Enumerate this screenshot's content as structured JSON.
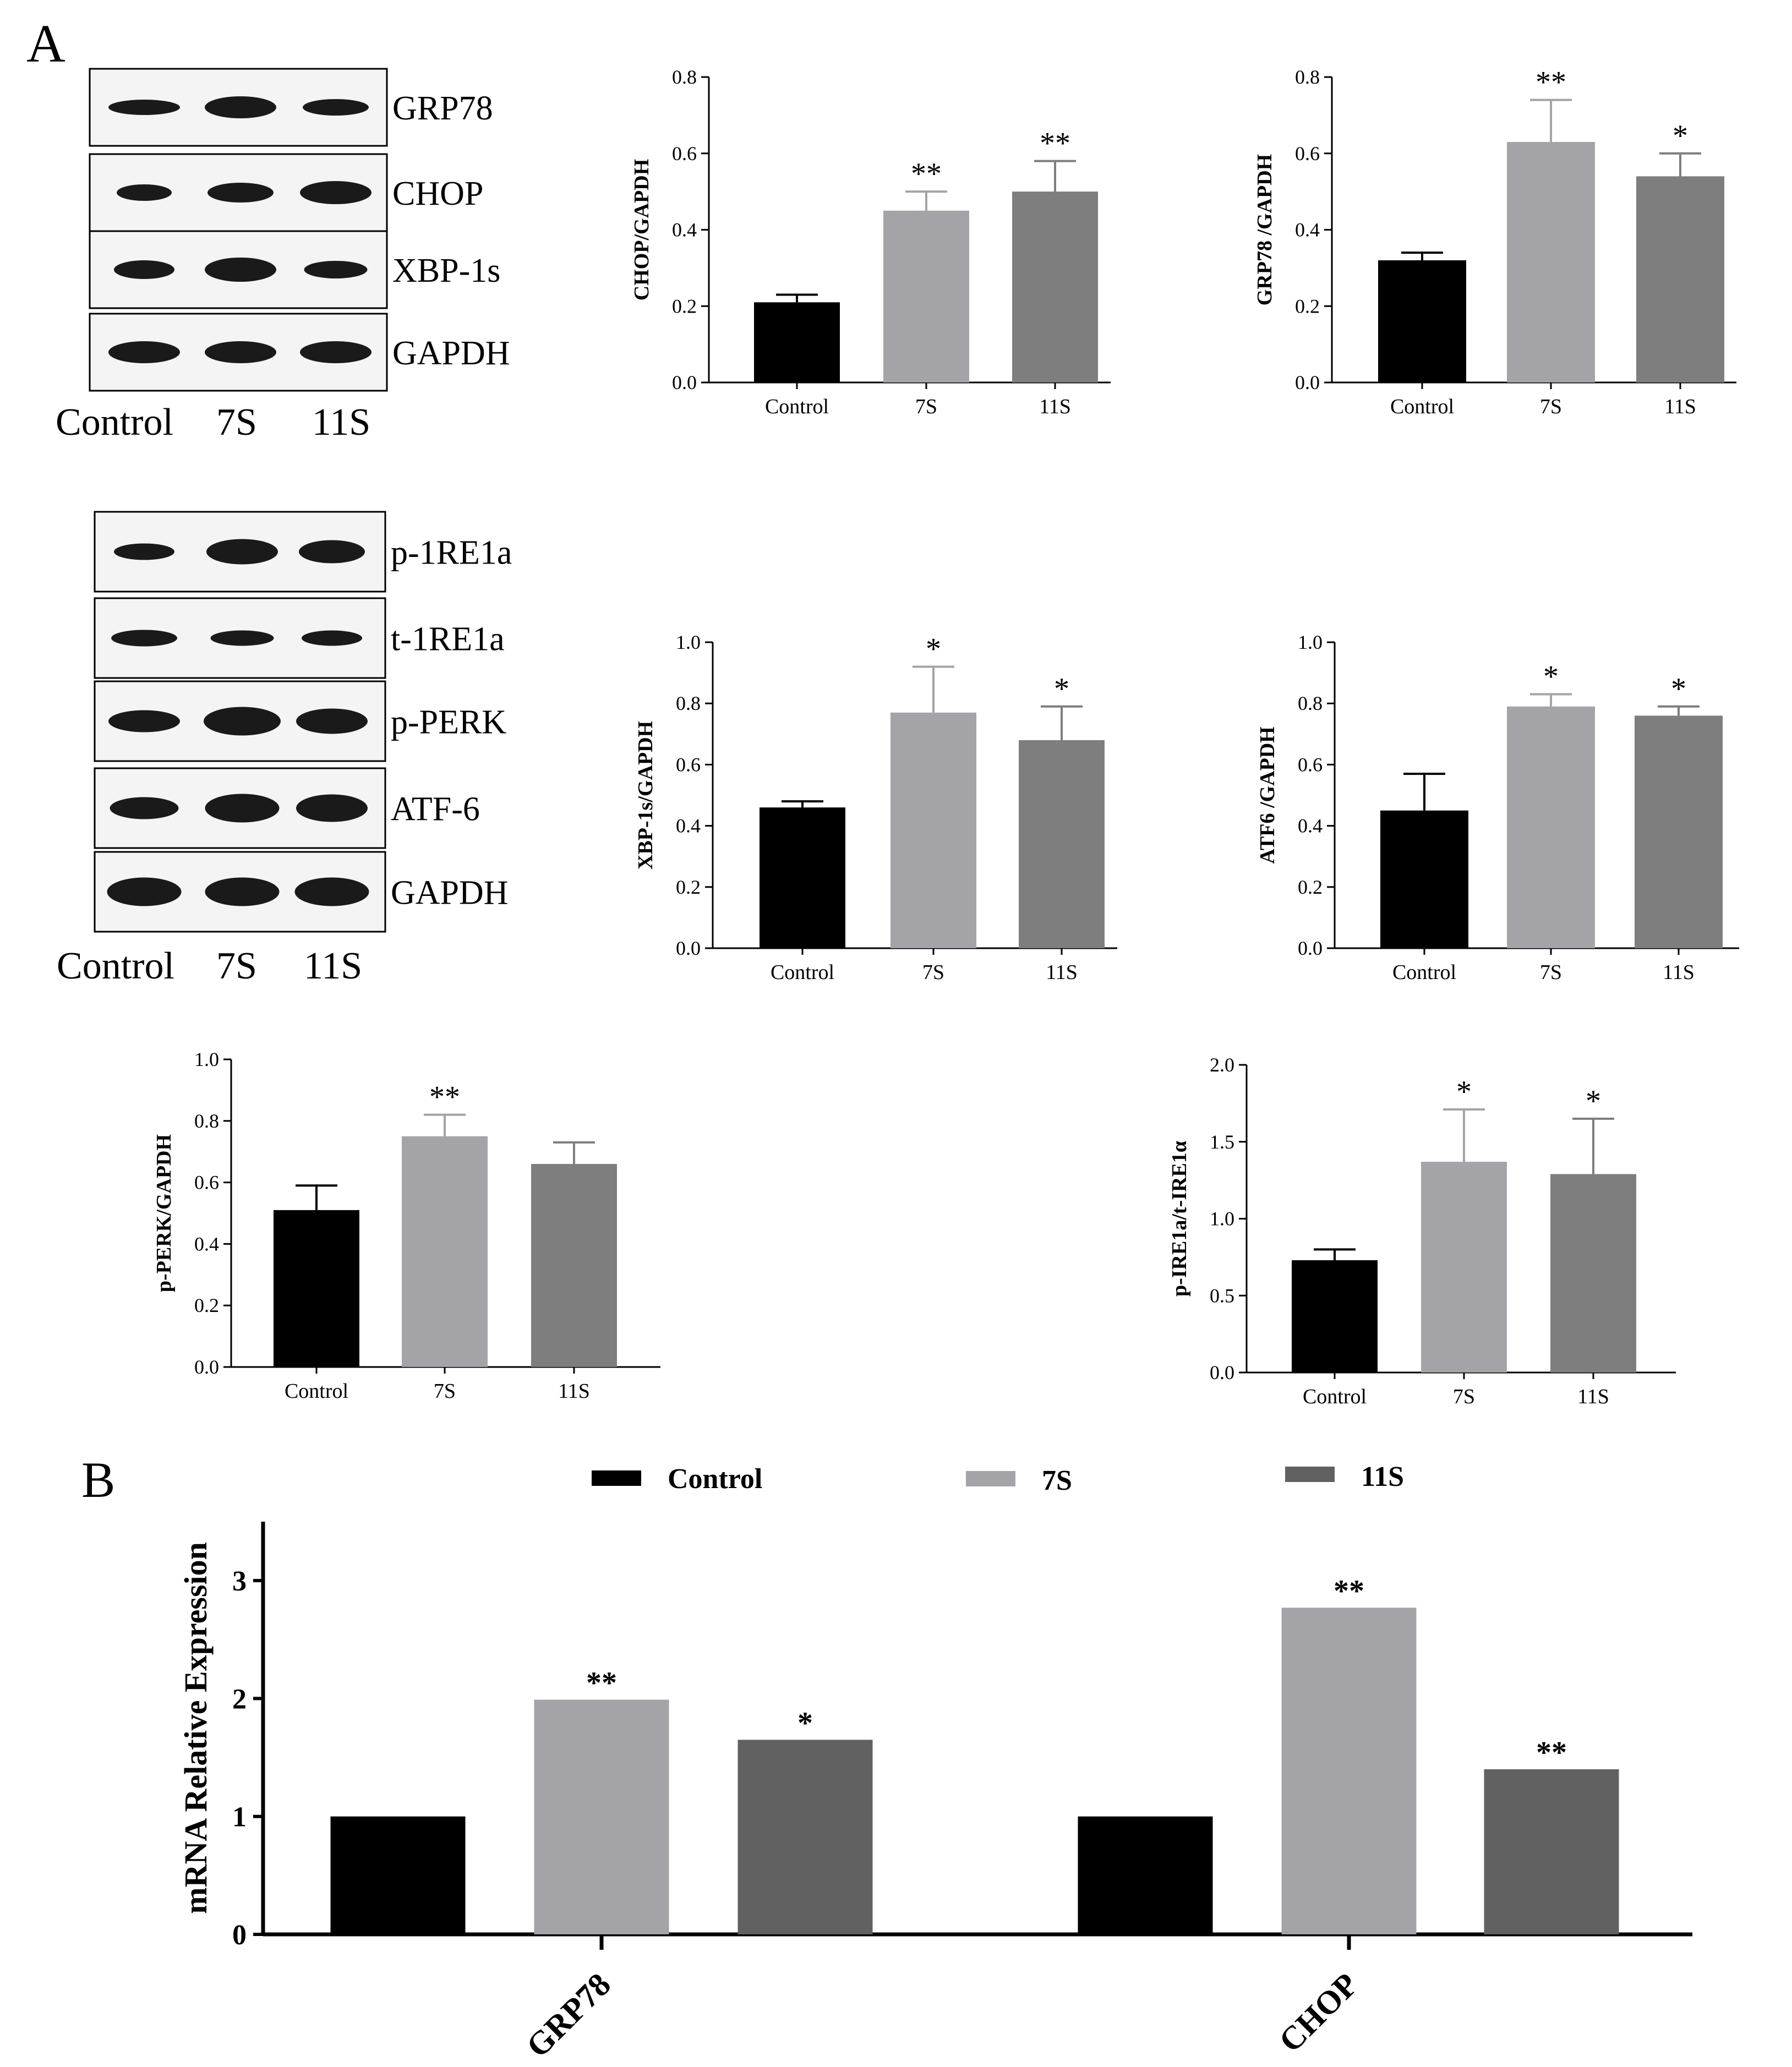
{
  "panel_labels": {
    "a": "A",
    "b": "B"
  },
  "colors": {
    "control": "#000000",
    "s7": "#a3a3a8",
    "s11": "#7e7e7e",
    "s11_b": "#616161",
    "axis": "#000000",
    "blot_bg": "#f4f4f4"
  },
  "blots": [
    {
      "rows": [
        "GRP78",
        "CHOP",
        "XBP-1s",
        "GAPDH"
      ],
      "lanes": [
        "Control",
        "7S",
        "11S"
      ]
    },
    {
      "rows": [
        "p-1RE1a",
        "t-1RE1a",
        "p-PERK",
        "ATF-6",
        "GAPDH"
      ],
      "lanes": [
        "Control",
        "7S",
        "11S"
      ]
    }
  ],
  "chart_data": [
    {
      "type": "bar",
      "panel": "A",
      "ylabel": "CHOP/GAPDH",
      "categories": [
        "Control",
        "7S",
        "11S"
      ],
      "values": [
        0.21,
        0.45,
        0.5
      ],
      "errors": [
        0.02,
        0.05,
        0.08
      ],
      "significance": [
        "",
        "**",
        "**"
      ],
      "ylim": [
        0,
        0.8
      ],
      "yticks": [
        "0.0",
        "0.2",
        "0.4",
        "0.6",
        "0.8"
      ]
    },
    {
      "type": "bar",
      "panel": "A",
      "ylabel": "GRP78 /GAPDH",
      "categories": [
        "Control",
        "7S",
        "11S"
      ],
      "values": [
        0.32,
        0.63,
        0.54
      ],
      "errors": [
        0.02,
        0.11,
        0.06
      ],
      "significance": [
        "",
        "**",
        "*"
      ],
      "ylim": [
        0,
        0.8
      ],
      "yticks": [
        "0.0",
        "0.2",
        "0.4",
        "0.6",
        "0.8"
      ]
    },
    {
      "type": "bar",
      "panel": "A",
      "ylabel": "XBP-1s/GAPDH",
      "categories": [
        "Control",
        "7S",
        "11S"
      ],
      "values": [
        0.46,
        0.77,
        0.68
      ],
      "errors": [
        0.02,
        0.15,
        0.11
      ],
      "significance": [
        "",
        "*",
        "*"
      ],
      "ylim": [
        0,
        1.0
      ],
      "yticks": [
        "0.0",
        "0.2",
        "0.4",
        "0.6",
        "0.8",
        "1.0"
      ]
    },
    {
      "type": "bar",
      "panel": "A",
      "ylabel": "ATF6 /GAPDH",
      "categories": [
        "Control",
        "7S",
        "11S"
      ],
      "values": [
        0.45,
        0.79,
        0.76
      ],
      "errors": [
        0.12,
        0.04,
        0.03
      ],
      "significance": [
        "",
        "*",
        "*"
      ],
      "ylim": [
        0,
        1.0
      ],
      "yticks": [
        "0.0",
        "0.2",
        "0.4",
        "0.6",
        "0.8",
        "1.0"
      ]
    },
    {
      "type": "bar",
      "panel": "A",
      "ylabel": "p-PERK/GAPDH",
      "categories": [
        "Control",
        "7S",
        "11S"
      ],
      "values": [
        0.51,
        0.75,
        0.66
      ],
      "errors": [
        0.08,
        0.07,
        0.07
      ],
      "significance": [
        "",
        "**",
        ""
      ],
      "ylim": [
        0,
        1.0
      ],
      "yticks": [
        "0.0",
        "0.2",
        "0.4",
        "0.6",
        "0.8",
        "1.0"
      ]
    },
    {
      "type": "bar",
      "panel": "A",
      "ylabel": "p-IRE1a/t-IRE1α",
      "categories": [
        "Control",
        "7S",
        "11S"
      ],
      "values": [
        0.73,
        1.37,
        1.29
      ],
      "errors": [
        0.07,
        0.34,
        0.36
      ],
      "significance": [
        "",
        "*",
        "*"
      ],
      "ylim": [
        0,
        2.0
      ],
      "yticks": [
        "0.0",
        "0.5",
        "1.0",
        "1.5",
        "2.0"
      ]
    },
    {
      "type": "bar",
      "panel": "B",
      "ylabel": "mRNA Relative Expression",
      "categories": [
        "GRP78",
        "CHOP"
      ],
      "series": [
        {
          "name": "Control",
          "values": [
            1.0,
            1.0
          ],
          "significance": [
            "",
            ""
          ]
        },
        {
          "name": "7S",
          "values": [
            1.99,
            2.77
          ],
          "significance": [
            "**",
            "**"
          ]
        },
        {
          "name": "11S",
          "values": [
            1.65,
            1.4
          ],
          "significance": [
            "*",
            "**"
          ]
        }
      ],
      "legend": [
        "Control",
        "7S",
        "11S"
      ],
      "ylim": [
        0,
        3.5
      ],
      "yticks": [
        "0",
        "1",
        "2",
        "3"
      ]
    }
  ]
}
